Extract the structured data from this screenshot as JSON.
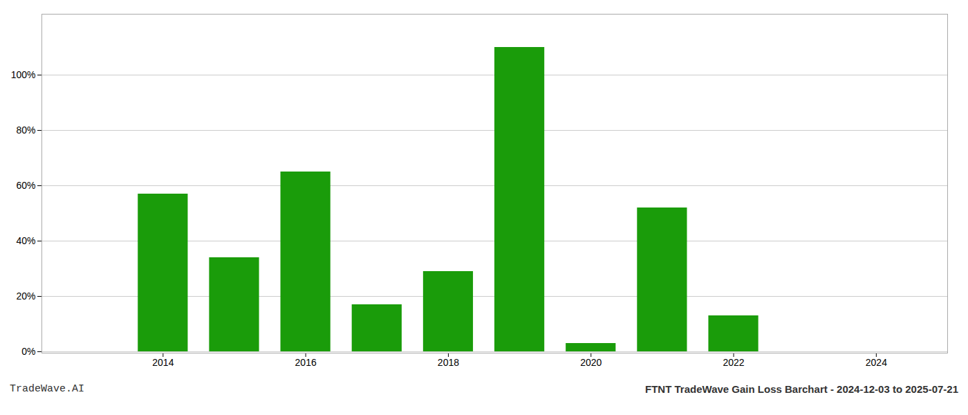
{
  "chart_data": {
    "type": "bar",
    "title": "FTNT TradeWave Gain Loss Barchart - 2024-12-03 to 2025-07-21",
    "annotations": [
      "TradeWave.AI"
    ],
    "x": [
      2014,
      2015,
      2016,
      2017,
      2018,
      2019,
      2020,
      2021,
      2022,
      2023
    ],
    "values": [
      0.57,
      0.34,
      0.65,
      0.17,
      0.29,
      1.1,
      0.03,
      0.52,
      0.13,
      0.0
    ],
    "color": "#1a9c0a",
    "xlim": [
      2012.3,
      2025.0
    ],
    "xticks": [
      2014,
      2016,
      2018,
      2020,
      2022,
      2024
    ],
    "ylim": [
      -0.005,
      1.22
    ],
    "yticks": [
      {
        "value": 0.0,
        "label": "0%"
      },
      {
        "value": 0.2,
        "label": "20%"
      },
      {
        "value": 0.4,
        "label": "40%"
      },
      {
        "value": 0.6,
        "label": "60%"
      },
      {
        "value": 0.8,
        "label": "80%"
      },
      {
        "value": 1.0,
        "label": "100%"
      }
    ],
    "grid": true
  }
}
